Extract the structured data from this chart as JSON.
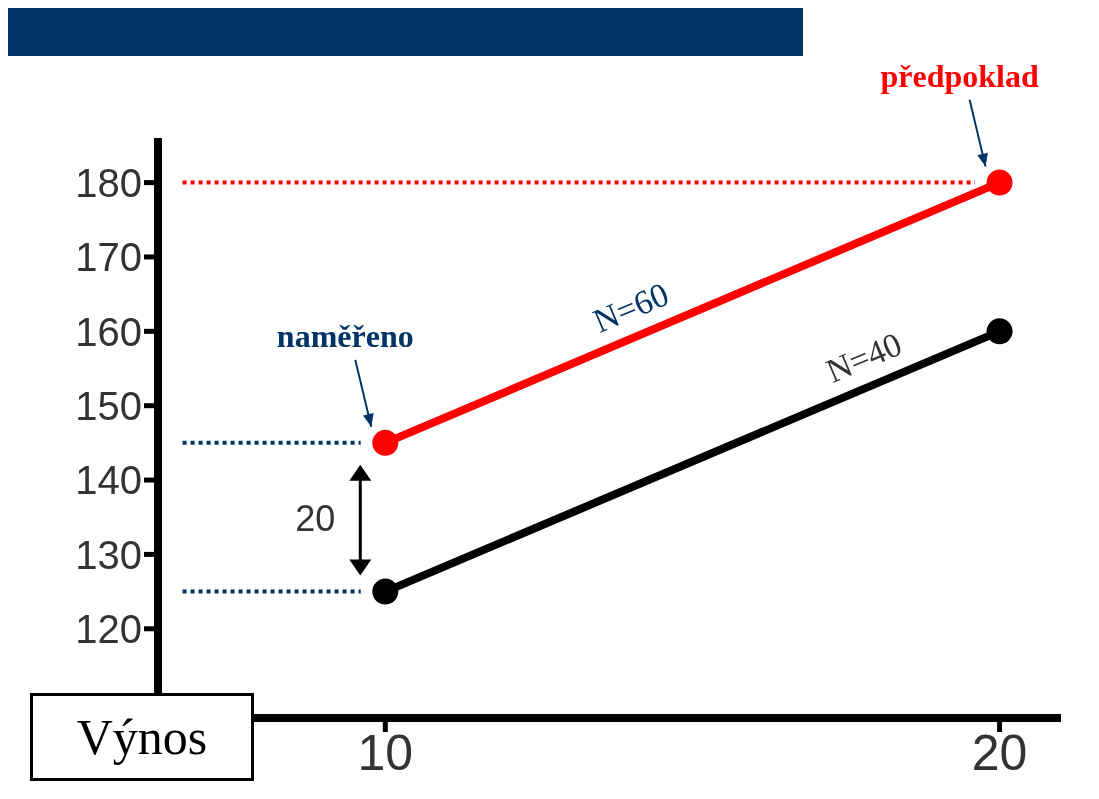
{
  "chart_data": {
    "type": "line",
    "x": [
      10,
      20
    ],
    "series": [
      {
        "name": "N=60",
        "color": "#ff0000",
        "values": [
          145,
          180
        ]
      },
      {
        "name": "N=40",
        "color": "#000000",
        "values": [
          125,
          160
        ]
      }
    ],
    "xlim": [
      6.3,
      21
    ],
    "xticks": [
      10,
      20
    ],
    "ylim": [
      108,
      186
    ],
    "yticks": [
      120,
      130,
      140,
      150,
      160,
      170,
      180
    ],
    "marker": "circle",
    "line_style": "solid",
    "ref_lines": [
      {
        "axis": "y",
        "value": 180,
        "color": "#ff0000",
        "line_style": "dotted"
      },
      {
        "axis": "y",
        "value": 145,
        "color": "#003366",
        "line_style": "dotted"
      },
      {
        "axis": "y",
        "value": 125,
        "color": "#003366",
        "line_style": "dotted"
      }
    ],
    "annotations": [
      {
        "text": "naměřeno",
        "x": 10,
        "y": 145
      },
      {
        "text": "předpoklad",
        "x": 20,
        "y": 180
      },
      "20",
      "Výnos"
    ]
  }
}
